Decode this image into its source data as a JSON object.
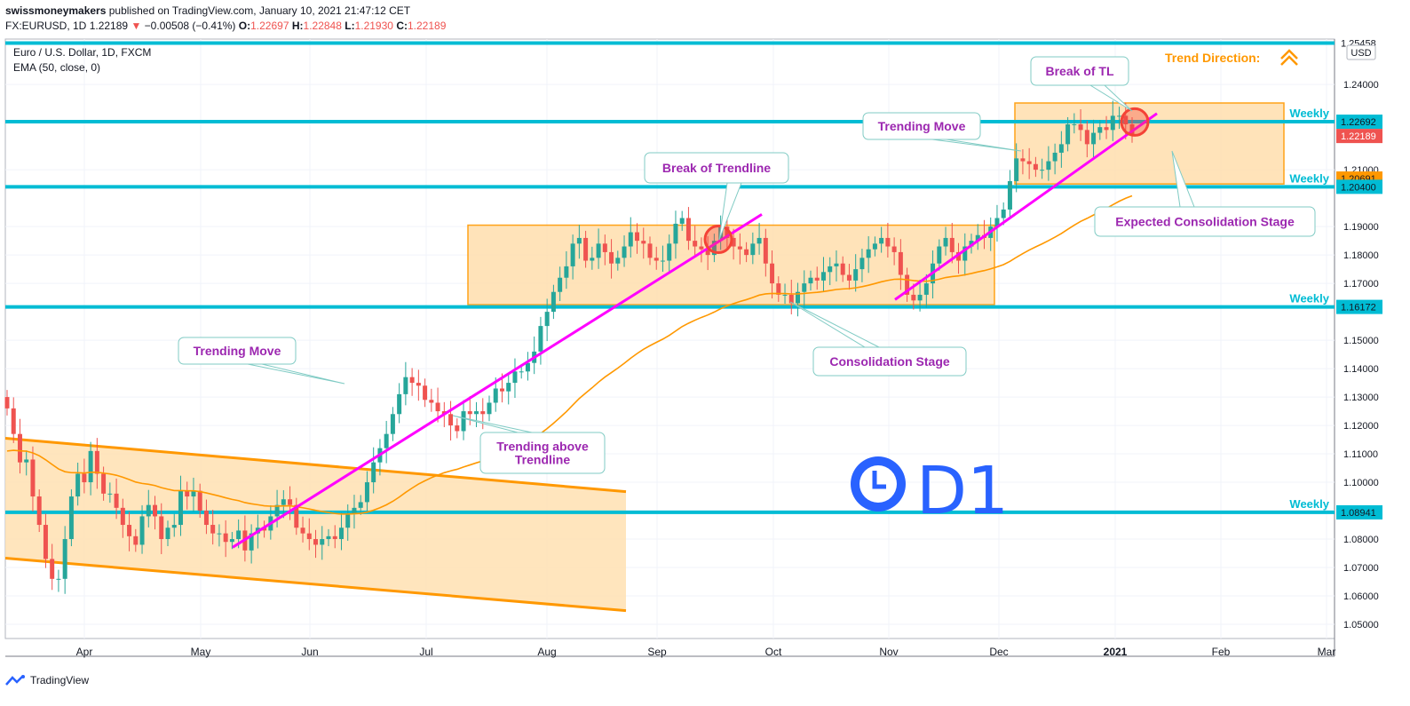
{
  "header": {
    "author": "swissmoneymakers",
    "published": "published on TradingView.com, January 10, 2021 21:47:12 CET",
    "symbol": "FX:EURUSD, 1D",
    "last": "1.22189",
    "change": "−0.00508 (−0.41%)",
    "o_label": "O:",
    "o": "1.22697",
    "h_label": "H:",
    "h": "1.22848",
    "l_label": "L:",
    "l": "1.21930",
    "c_label": "C:",
    "c": "1.22189"
  },
  "legend": {
    "title": "Euro / U.S. Dollar, 1D, FXCM",
    "ema": "EMA (50, close, 0)"
  },
  "footer": {
    "brand": "TradingView"
  },
  "colors": {
    "weekly_line": "#00bcd4",
    "box_fill": "#ffe0b2",
    "box_stroke": "#ff9800",
    "trendline": "#ff00ff",
    "ema": "#ff9800",
    "candle_up": "#26a69a",
    "candle_down": "#ef5350",
    "annotation_text": "#9c27b0",
    "d1_icon": "#2962ff"
  },
  "chart_data": {
    "type": "candlestick",
    "symbol": "EURUSD",
    "timeframe": "1D",
    "x_labels": [
      "Apr",
      "May",
      "Jun",
      "Jul",
      "Aug",
      "Sep",
      "Oct",
      "Nov",
      "Dec",
      "2021",
      "Feb",
      "Mar"
    ],
    "ylim": [
      1.045,
      1.256
    ],
    "y_ticks": [
      "1.05000",
      "1.06000",
      "1.07000",
      "1.08000",
      "1.09000",
      "1.10000",
      "1.11000",
      "1.12000",
      "1.13000",
      "1.14000",
      "1.15000",
      "1.17000",
      "1.18000",
      "1.19000",
      "1.21000",
      "1.24000"
    ],
    "currency": "USD",
    "price_labels": [
      {
        "value": 1.25458,
        "text": "1.25458",
        "style": "plain"
      },
      {
        "value": 1.22692,
        "text": "1.22692",
        "style": "weekly"
      },
      {
        "value": 1.22189,
        "text": "1.22189",
        "style": "last"
      },
      {
        "value": 1.20691,
        "text": "1.20691",
        "style": "ema"
      },
      {
        "value": 1.204,
        "text": "1.20400",
        "style": "weekly"
      },
      {
        "value": 1.16172,
        "text": "1.16172",
        "style": "weekly"
      },
      {
        "value": 1.08941,
        "text": "1.08941",
        "style": "weekly"
      }
    ],
    "weekly_levels": [
      1.25458,
      1.22692,
      1.204,
      1.16172,
      1.08941
    ],
    "weekly_label": "Weekly",
    "trend_direction": {
      "label": "Trend Direction:",
      "direction": "up"
    },
    "annotations": [
      {
        "text": "Trending Move"
      },
      {
        "text": "Trending above Trendline"
      },
      {
        "text": "Break of Trendline"
      },
      {
        "text": "Consolidation Stage"
      },
      {
        "text": "Trending Move"
      },
      {
        "text": "Break of TL"
      },
      {
        "text": "Expected Consolidation Stage"
      }
    ],
    "timeframe_badge": "D1",
    "series": [
      {
        "name": "EURUSD",
        "ohlc_close_approx": [
          1.126,
          1.117,
          1.107,
          1.108,
          1.095,
          1.085,
          1.073,
          1.066,
          1.066,
          1.08,
          1.095,
          1.103,
          1.1,
          1.111,
          1.103,
          1.096,
          1.096,
          1.091,
          1.085,
          1.081,
          1.078,
          1.088,
          1.092,
          1.088,
          1.08,
          1.084,
          1.085,
          1.097,
          1.095,
          1.097,
          1.09,
          1.085,
          1.082,
          1.082,
          1.079,
          1.08,
          1.083,
          1.076,
          1.082,
          1.084,
          1.083,
          1.088,
          1.092,
          1.094,
          1.092,
          1.084,
          1.082,
          1.08,
          1.078,
          1.08,
          1.081,
          1.08,
          1.084,
          1.089,
          1.091,
          1.093,
          1.1,
          1.107,
          1.112,
          1.117,
          1.124,
          1.131,
          1.137,
          1.135,
          1.134,
          1.129,
          1.128,
          1.125,
          1.124,
          1.12,
          1.118,
          1.125,
          1.124,
          1.125,
          1.124,
          1.128,
          1.133,
          1.132,
          1.135,
          1.139,
          1.139,
          1.142,
          1.146,
          1.155,
          1.16,
          1.167,
          1.172,
          1.176,
          1.184,
          1.186,
          1.178,
          1.179,
          1.184,
          1.181,
          1.177,
          1.179,
          1.183,
          1.188,
          1.185,
          1.184,
          1.179,
          1.178,
          1.178,
          1.184,
          1.191,
          1.193,
          1.185,
          1.183,
          1.182,
          1.18,
          1.185,
          1.19,
          1.186,
          1.183,
          1.182,
          1.18,
          1.184,
          1.186,
          1.177,
          1.17,
          1.166,
          1.166,
          1.163,
          1.167,
          1.17,
          1.172,
          1.171,
          1.174,
          1.176,
          1.177,
          1.173,
          1.171,
          1.175,
          1.179,
          1.182,
          1.184,
          1.186,
          1.183,
          1.181,
          1.173,
          1.166,
          1.164,
          1.166,
          1.17,
          1.177,
          1.183,
          1.186,
          1.181,
          1.178,
          1.183,
          1.185,
          1.187,
          1.186,
          1.19,
          1.193,
          1.196,
          1.206,
          1.214,
          1.213,
          1.212,
          1.21,
          1.21,
          1.213,
          1.216,
          1.219,
          1.226,
          1.226,
          1.224,
          1.219,
          1.223,
          1.225,
          1.224,
          1.229,
          1.229,
          1.226,
          1.222
        ]
      },
      {
        "name": "EMA (50, close, 0)",
        "values": []
      }
    ]
  }
}
